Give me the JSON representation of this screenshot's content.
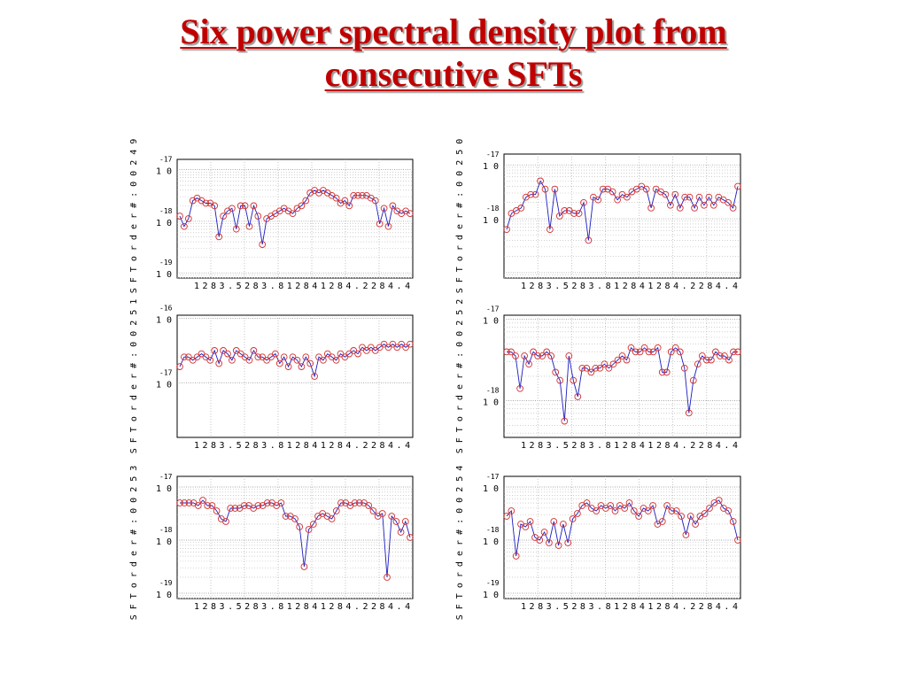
{
  "title": {
    "line1": "Six power spectral density plot from",
    "line2": "consecutive SFTs"
  },
  "colors": {
    "title": "#c00000",
    "series_line": "#1b1bbf",
    "marker": "#d43030",
    "grid": "#b5b5b5"
  },
  "x_tick_labels": [
    "1",
    "2",
    "8",
    "3",
    ".",
    "5",
    "2",
    "8",
    "3",
    ".",
    "8",
    "1",
    "2",
    "8",
    "4",
    "1",
    "2",
    "8",
    "4",
    ".",
    "2",
    "2",
    "8",
    "4",
    ".",
    "4"
  ],
  "chart_data": [
    {
      "type": "line",
      "side_label": "S F T   o r d e r   # : 0 0 2 4 9",
      "y_tick_labels": [
        {
          "base": "1 0",
          "exp": "-17"
        },
        {
          "base": "1 0",
          "exp": "-18"
        },
        {
          "base": "1 0",
          "exp": "-19"
        }
      ],
      "ylim": [
        -19.1,
        -16.8
      ],
      "grid": true,
      "markers": "circle",
      "values": [
        -17.9,
        -18.1,
        -17.95,
        -17.6,
        -17.55,
        -17.6,
        -17.65,
        -17.65,
        -17.7,
        -18.3,
        -17.9,
        -17.8,
        -17.75,
        -18.15,
        -17.7,
        -17.7,
        -18.1,
        -17.7,
        -17.9,
        -18.45,
        -17.95,
        -17.9,
        -17.85,
        -17.8,
        -17.75,
        -17.8,
        -17.85,
        -17.75,
        -17.7,
        -17.6,
        -17.45,
        -17.4,
        -17.45,
        -17.4,
        -17.45,
        -17.5,
        -17.55,
        -17.65,
        -17.6,
        -17.7,
        -17.5,
        -17.5,
        -17.5,
        -17.5,
        -17.55,
        -17.6,
        -18.05,
        -17.75,
        -18.1,
        -17.7,
        -17.8,
        -17.85,
        -17.8,
        -17.85
      ]
    },
    {
      "type": "line",
      "side_label": "S F T   o r d e r   # : 0 0 2 5 0",
      "y_tick_labels": [
        {
          "base": "1 0",
          "exp": "-17"
        },
        {
          "base": "1 0",
          "exp": "-18"
        }
      ],
      "ylim": [
        -19.1,
        -16.8
      ],
      "grid": true,
      "markers": "circle",
      "values": [
        -18.2,
        -17.9,
        -17.85,
        -17.8,
        -17.6,
        -17.55,
        -17.55,
        -17.3,
        -17.45,
        -18.2,
        -17.45,
        -17.95,
        -17.85,
        -17.85,
        -17.9,
        -17.9,
        -17.7,
        -18.4,
        -17.6,
        -17.65,
        -17.45,
        -17.45,
        -17.5,
        -17.65,
        -17.55,
        -17.6,
        -17.5,
        -17.45,
        -17.4,
        -17.45,
        -17.8,
        -17.45,
        -17.5,
        -17.55,
        -17.75,
        -17.55,
        -17.8,
        -17.6,
        -17.6,
        -17.8,
        -17.6,
        -17.75,
        -17.6,
        -17.75,
        -17.6,
        -17.65,
        -17.7,
        -17.8,
        -17.4
      ]
    },
    {
      "type": "line",
      "side_label": "S F T   o r d e r   # : 0 0 2 5 1",
      "y_tick_labels": [
        {
          "base": "1 0",
          "exp": "-16"
        },
        {
          "base": "1 0",
          "exp": "-17"
        }
      ],
      "ylim": [
        -17.85,
        -15.95
      ],
      "grid": false,
      "markers": "circle",
      "values": [
        -16.75,
        -16.6,
        -16.6,
        -16.65,
        -16.6,
        -16.55,
        -16.6,
        -16.65,
        -16.5,
        -16.7,
        -16.5,
        -16.55,
        -16.65,
        -16.5,
        -16.55,
        -16.6,
        -16.65,
        -16.5,
        -16.6,
        -16.6,
        -16.65,
        -16.6,
        -16.55,
        -16.7,
        -16.6,
        -16.75,
        -16.6,
        -16.65,
        -16.75,
        -16.6,
        -16.7,
        -16.9,
        -16.6,
        -16.65,
        -16.55,
        -16.6,
        -16.65,
        -16.55,
        -16.6,
        -16.55,
        -16.5,
        -16.55,
        -16.45,
        -16.5,
        -16.45,
        -16.5,
        -16.45,
        -16.4,
        -16.45,
        -16.4,
        -16.45,
        -16.4,
        -16.45,
        -16.4
      ]
    },
    {
      "type": "line",
      "side_label": "S F T   o r d e r   # : 0 0 2 5 2",
      "y_tick_labels": [
        {
          "base": "1 0",
          "exp": "-17"
        },
        {
          "base": "1 0",
          "exp": "-18"
        }
      ],
      "ylim": [
        -18.45,
        -16.95
      ],
      "grid": true,
      "markers": "circle",
      "values": [
        -17.4,
        -17.4,
        -17.45,
        -17.85,
        -17.45,
        -17.55,
        -17.4,
        -17.45,
        -17.45,
        -17.4,
        -17.45,
        -17.65,
        -17.75,
        -18.25,
        -17.45,
        -17.75,
        -17.95,
        -17.6,
        -17.6,
        -17.65,
        -17.6,
        -17.6,
        -17.55,
        -17.6,
        -17.55,
        -17.5,
        -17.45,
        -17.5,
        -17.35,
        -17.4,
        -17.4,
        -17.35,
        -17.4,
        -17.4,
        -17.35,
        -17.65,
        -17.65,
        -17.4,
        -17.35,
        -17.4,
        -17.6,
        -18.15,
        -17.75,
        -17.55,
        -17.45,
        -17.5,
        -17.5,
        -17.4,
        -17.45,
        -17.45,
        -17.5,
        -17.4,
        -17.4
      ]
    },
    {
      "type": "line",
      "side_label": "S F T   o r d e r   # : 0 0 2 5 3",
      "y_tick_labels": [
        {
          "base": "1 0",
          "exp": "-17"
        },
        {
          "base": "1 0",
          "exp": "-18"
        },
        {
          "base": "1 0",
          "exp": "-19"
        }
      ],
      "ylim": [
        -19.1,
        -16.8
      ],
      "grid": true,
      "markers": "circle",
      "values": [
        -17.3,
        -17.3,
        -17.3,
        -17.3,
        -17.35,
        -17.25,
        -17.35,
        -17.35,
        -17.45,
        -17.6,
        -17.65,
        -17.4,
        -17.4,
        -17.4,
        -17.35,
        -17.35,
        -17.4,
        -17.35,
        -17.35,
        -17.3,
        -17.3,
        -17.35,
        -17.3,
        -17.55,
        -17.55,
        -17.6,
        -17.75,
        -18.5,
        -17.8,
        -17.7,
        -17.55,
        -17.5,
        -17.55,
        -17.6,
        -17.45,
        -17.3,
        -17.3,
        -17.35,
        -17.3,
        -17.3,
        -17.3,
        -17.35,
        -17.45,
        -17.55,
        -17.5,
        -18.7,
        -17.55,
        -17.65,
        -17.85,
        -17.65,
        -17.95
      ]
    },
    {
      "type": "line",
      "side_label": "S F T   o r d e r   # : 0 0 2 5 4",
      "y_tick_labels": [
        {
          "base": "1 0",
          "exp": "-17"
        },
        {
          "base": "1 0",
          "exp": "-18"
        },
        {
          "base": "1 0",
          "exp": "-19"
        }
      ],
      "ylim": [
        -19.1,
        -16.8
      ],
      "grid": true,
      "markers": "circle",
      "values": [
        -17.55,
        -17.45,
        -18.3,
        -17.7,
        -17.75,
        -17.65,
        -17.95,
        -18.0,
        -17.85,
        -18.05,
        -17.65,
        -18.1,
        -17.7,
        -18.05,
        -17.6,
        -17.5,
        -17.35,
        -17.3,
        -17.4,
        -17.45,
        -17.35,
        -17.4,
        -17.35,
        -17.45,
        -17.35,
        -17.4,
        -17.3,
        -17.45,
        -17.55,
        -17.4,
        -17.45,
        -17.35,
        -17.7,
        -17.65,
        -17.35,
        -17.45,
        -17.45,
        -17.55,
        -17.9,
        -17.55,
        -17.7,
        -17.55,
        -17.5,
        -17.4,
        -17.3,
        -17.25,
        -17.4,
        -17.45,
        -17.65,
        -18.0
      ]
    }
  ]
}
